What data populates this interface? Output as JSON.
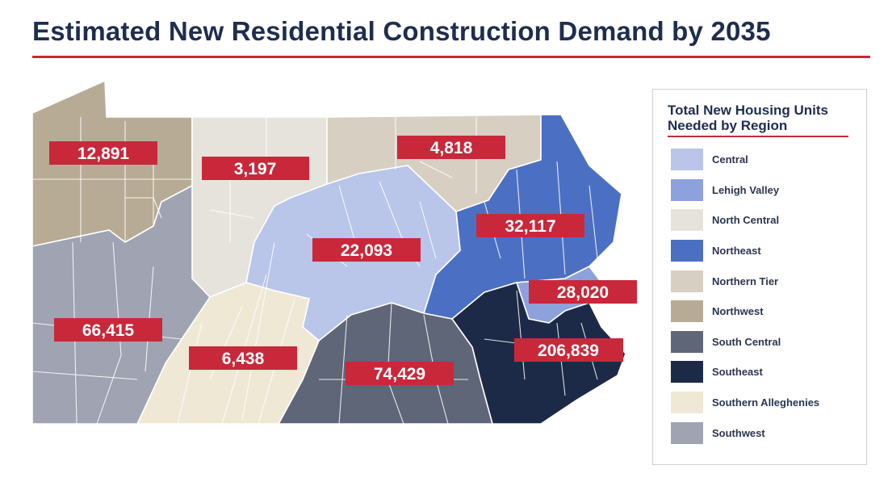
{
  "title": "Estimated New Residential Construction Demand by 2035",
  "legend": {
    "title_line1": "Total New Housing Units",
    "title_line2": "Needed by Region"
  },
  "colors": {
    "accent": "#c8283a",
    "title": "#1f2d4e"
  },
  "regions": [
    {
      "name": "Central",
      "color": "#b9c5e9",
      "value": "22,093"
    },
    {
      "name": "Lehigh Valley",
      "color": "#8da2dc",
      "value": "28,020"
    },
    {
      "name": "North Central",
      "color": "#e6e3dc",
      "value": "3,197"
    },
    {
      "name": "Northeast",
      "color": "#4b70c3",
      "value": "32,117"
    },
    {
      "name": "Northern Tier",
      "color": "#d7cfc2",
      "value": "4,818"
    },
    {
      "name": "Northwest",
      "color": "#b7ab96",
      "value": "12,891"
    },
    {
      "name": "South Central",
      "color": "#5f6677",
      "value": "74,429"
    },
    {
      "name": "Southeast",
      "color": "#1c2a47",
      "value": "206,839"
    },
    {
      "name": "Southern Alleghenies",
      "color": "#efe8d5",
      "value": "6,438"
    },
    {
      "name": "Southwest",
      "color": "#9fa3b2",
      "value": "66,415"
    }
  ]
}
